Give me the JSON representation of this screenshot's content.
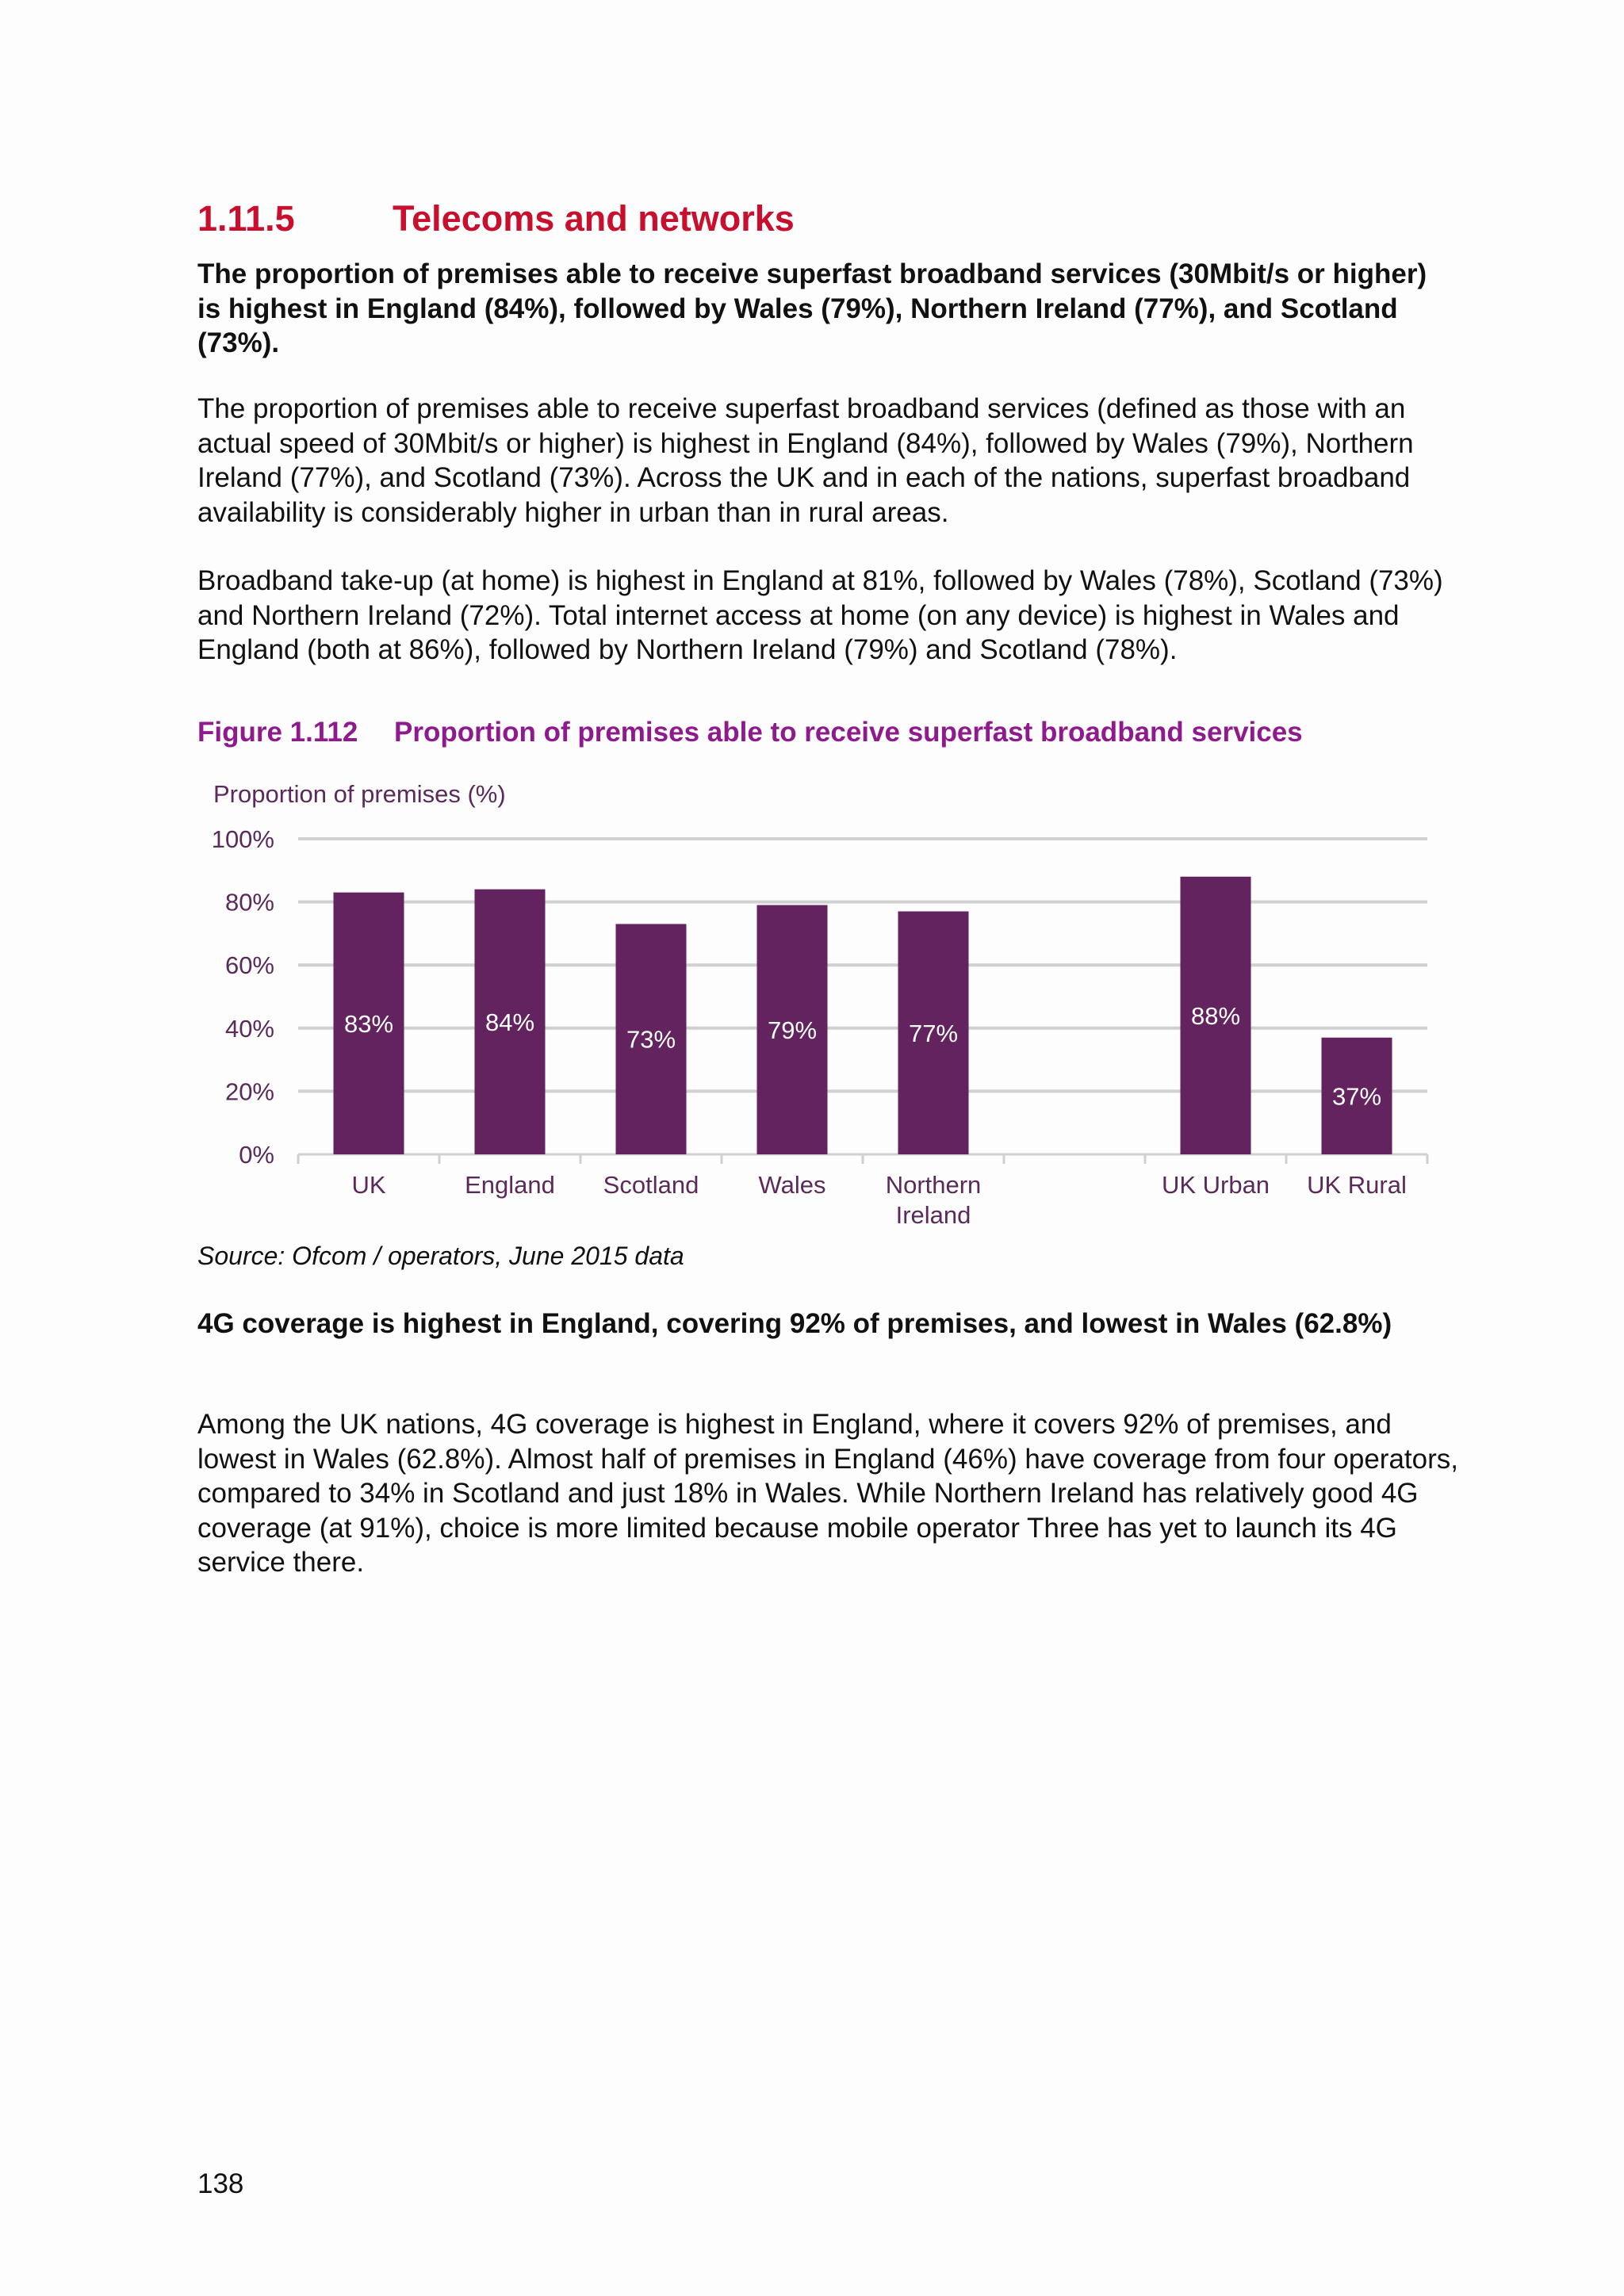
{
  "section": {
    "number": "1.11.5",
    "title": "Telecoms and networks"
  },
  "lead_paragraph": "The proportion of premises able to receive superfast broadband services (30Mbit/s or higher) is highest in England (84%), followed by Wales (79%), Northern Ireland (77%), and Scotland (73%).",
  "paragraphs": [
    "The proportion of premises able to receive superfast broadband services (defined as those with an actual speed of 30Mbit/s or higher) is highest in England (84%), followed by Wales (79%), Northern Ireland (77%), and Scotland (73%). Across the UK and in each of the nations, superfast broadband availability is considerably higher in urban than in rural areas.",
    "Broadband take-up (at home) is highest in England at 81%, followed by Wales (78%), Scotland (73%) and Northern Ireland (72%). Total internet access at home (on any device) is highest in Wales and England (both at 86%), followed by Northern Ireland (79%) and Scotland (78%)."
  ],
  "figure": {
    "number": "Figure 1.112",
    "title": "Proportion of premises able to receive superfast broadband services",
    "source": "Source: Ofcom / operators, June 2015 data"
  },
  "chart_data": {
    "type": "bar",
    "title": "",
    "xlabel": "",
    "ylabel": "Proportion of premises (%)",
    "ylim": [
      0,
      100
    ],
    "yticks": [
      "0%",
      "20%",
      "40%",
      "60%",
      "80%",
      "100%"
    ],
    "categories": [
      "UK",
      "England",
      "Scotland",
      "Wales",
      "Northern Ireland",
      "",
      "UK Urban",
      "UK Rural"
    ],
    "values": [
      83,
      84,
      73,
      79,
      77,
      null,
      88,
      37
    ],
    "data_labels": [
      "83%",
      "84%",
      "73%",
      "79%",
      "77%",
      "",
      "88%",
      "37%"
    ],
    "grid": true,
    "legend": "none",
    "colors": {
      "bar": "#62235f",
      "grid": "#d0d0d0",
      "axis_text": "#5a2a5a",
      "label_text": "#ffffff"
    }
  },
  "lead_paragraph_2": "4G coverage is highest in England, covering 92% of premises, and lowest in Wales (62.8%)",
  "paragraph_3": "Among the UK nations, 4G coverage is highest in England, where it covers 92% of premises, and lowest in Wales (62.8%). Almost half of premises in England (46%) have coverage from four operators, compared to 34% in Scotland and just 18% in Wales. While Northern Ireland has relatively good 4G coverage (at 91%), choice is more limited because mobile operator Three has yet to launch its 4G service there.",
  "page_number": "138",
  "colors": {
    "heading": "#c8102e",
    "figure_caption": "#8e1a8e",
    "body_text": "#111111"
  }
}
